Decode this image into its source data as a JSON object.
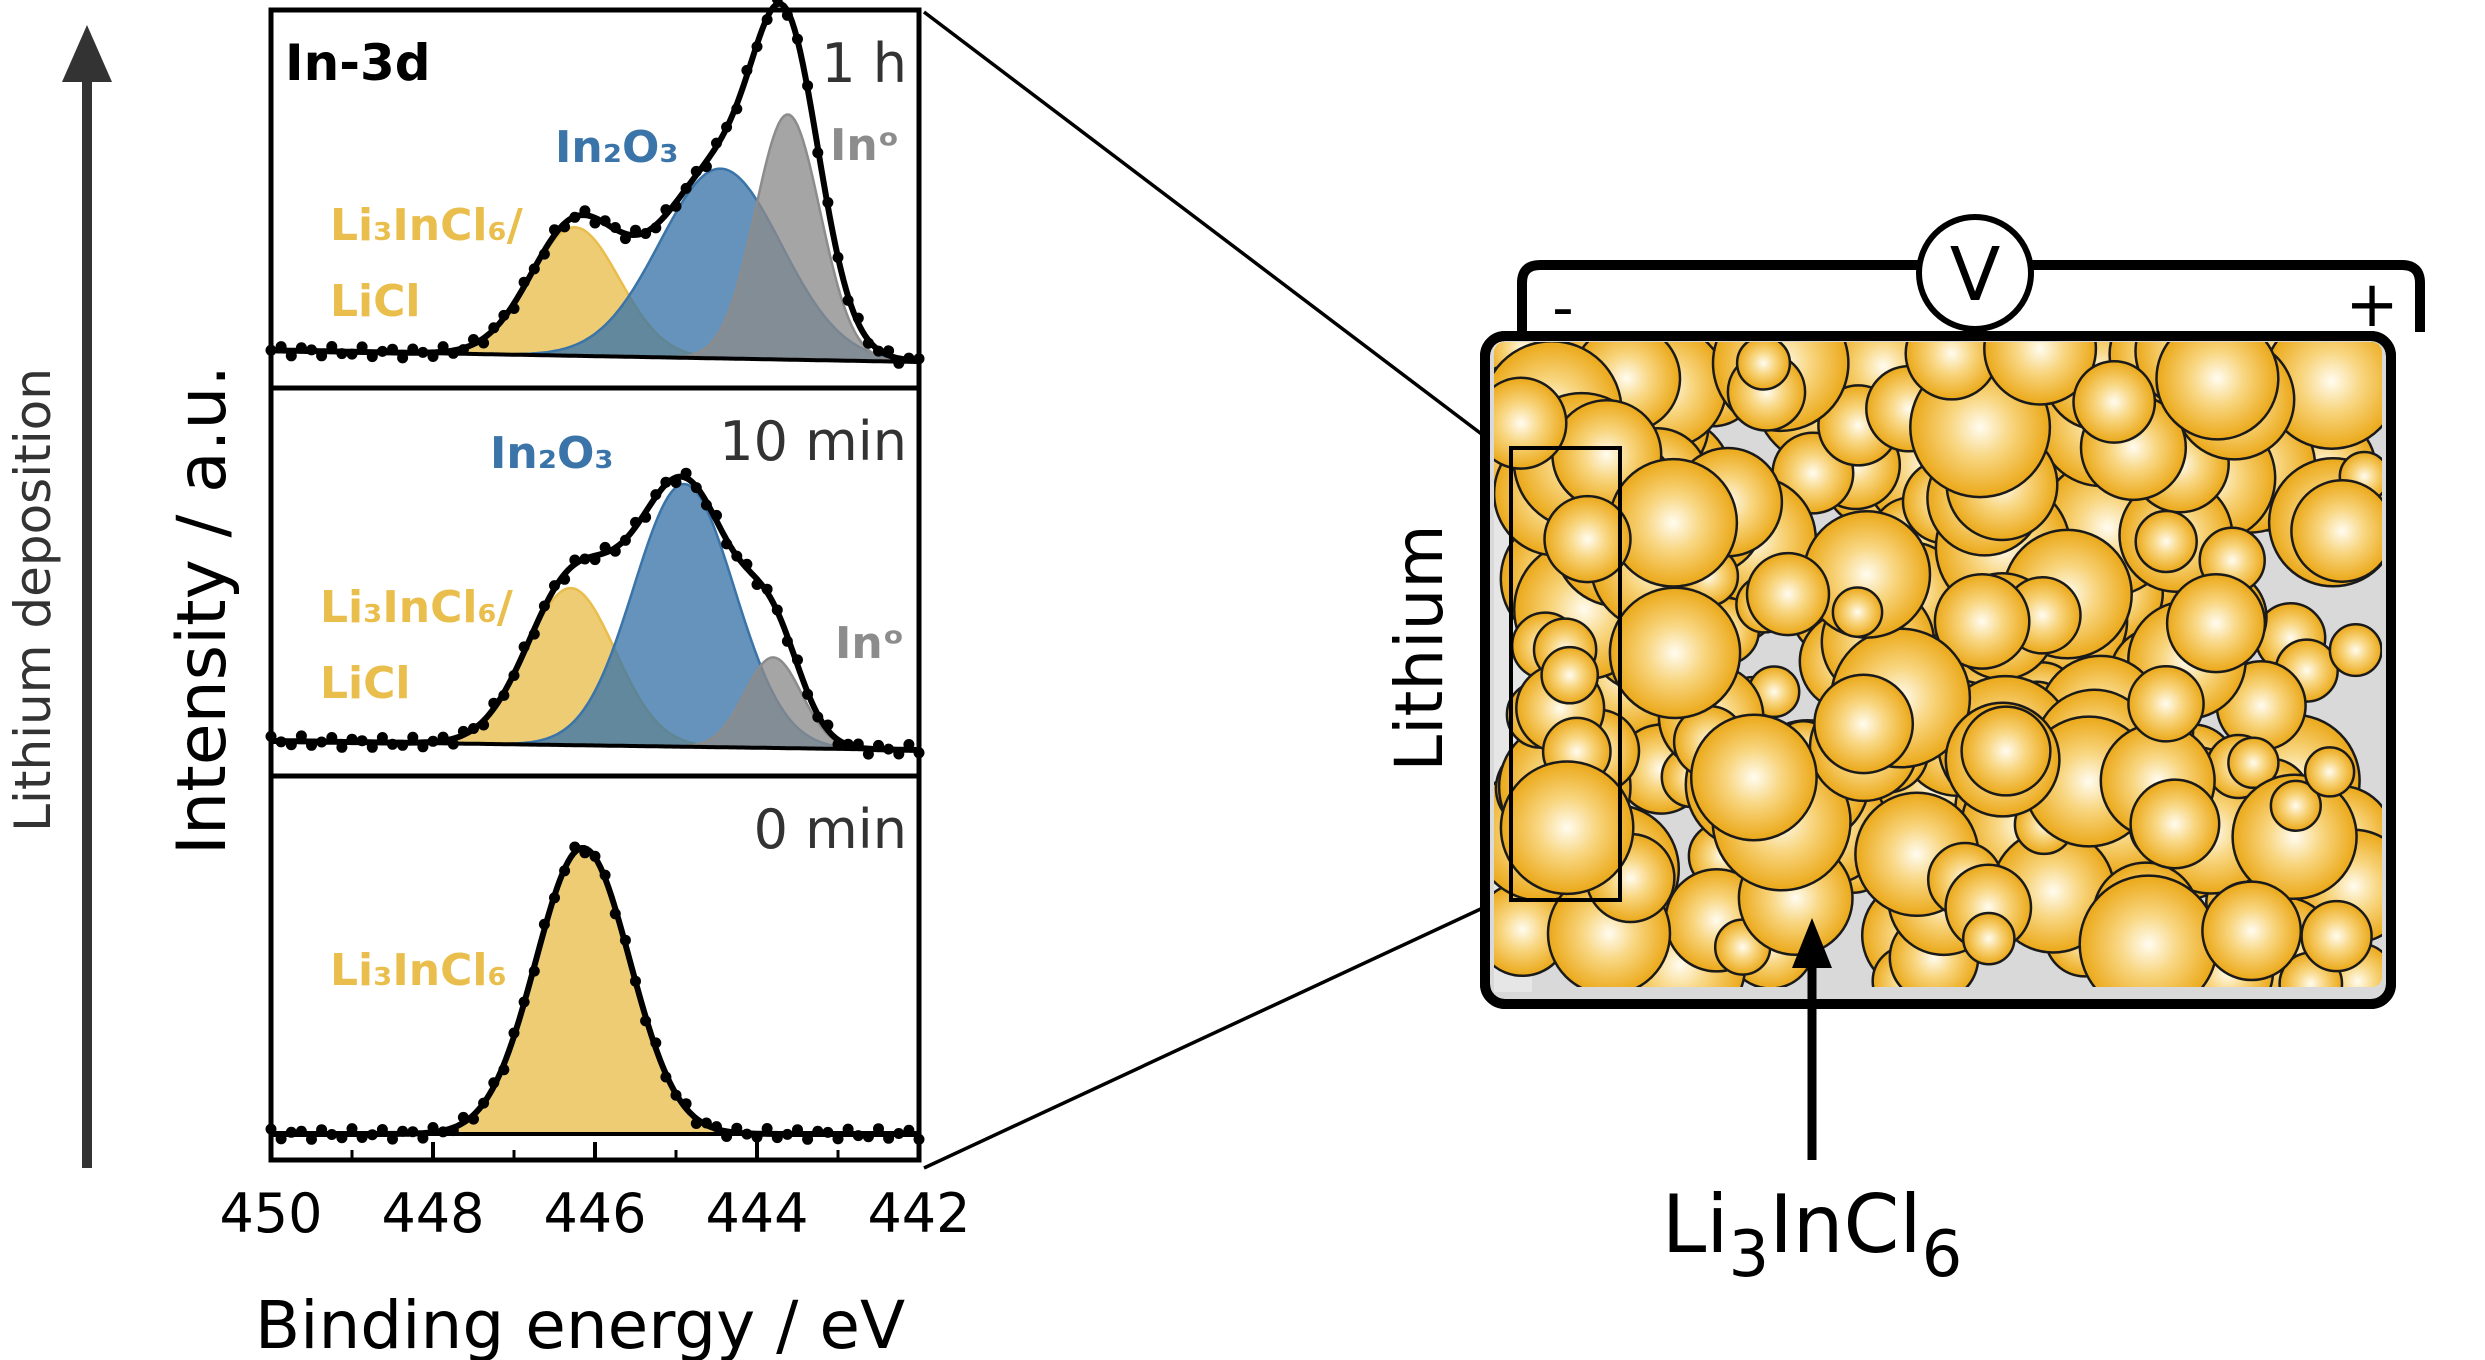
{
  "labels": {
    "left_arrow": "Lithium deposition",
    "y_axis": "Intensity / a.u.",
    "x_axis": "Binding energy / eV",
    "element": "In-3d",
    "electrode": "Lithium",
    "voltmeter": "V",
    "minus": "-",
    "plus": "+",
    "electrolyte_main": "Li",
    "electrolyte_sub1": "3",
    "electrolyte_mid": "InCl",
    "electrolyte_sub2": "6"
  },
  "colors": {
    "li3incl6": "#E9BE4C",
    "in2o3": "#3A74A8",
    "in0": "#8C8C8C",
    "envelope": "#000000",
    "cell_case": "#D9D9D9",
    "sphere": "#F2B522"
  },
  "chart_data": [
    {
      "type": "line",
      "panel": "1 h",
      "xlim": [
        450,
        442
      ],
      "x_ticks": [
        "450",
        "448",
        "446",
        "444",
        "442"
      ],
      "components": [
        {
          "name": "Li₃InCl₆/ LiCl",
          "label_line1": "Li₃InCl₆/",
          "label_line2": "LiCl",
          "color": "#E9BE4C",
          "center": 446.25,
          "height": 0.44,
          "sigma": 0.55
        },
        {
          "name": "In₂O₃",
          "label_line1": "In₂O₃",
          "color": "#3A74A8",
          "center": 444.45,
          "height": 0.65,
          "sigma": 0.75
        },
        {
          "name": "In⁰",
          "label_line1": "Inᵒ",
          "color": "#8C8C8C",
          "center": 443.62,
          "height": 0.84,
          "sigma": 0.4
        }
      ],
      "baseline": [
        0.04,
        0.0
      ]
    },
    {
      "type": "line",
      "panel": "10 min",
      "xlim": [
        450,
        442
      ],
      "components": [
        {
          "name": "Li₃InCl₆/ LiCl",
          "label_line1": "Li₃InCl₆/",
          "label_line2": "LiCl",
          "color": "#E9BE4C",
          "center": 446.3,
          "height": 0.52,
          "sigma": 0.55
        },
        {
          "name": "In₂O₃",
          "label_line1": "In₂O₃",
          "color": "#3A74A8",
          "center": 444.9,
          "height": 0.87,
          "sigma": 0.62
        },
        {
          "name": "In⁰",
          "label_line1": "Inᵒ",
          "color": "#8C8C8C",
          "center": 443.8,
          "height": 0.3,
          "sigma": 0.35
        }
      ],
      "baseline": [
        0.03,
        0.0
      ]
    },
    {
      "type": "line",
      "panel": "0 min",
      "xlim": [
        450,
        442
      ],
      "components": [
        {
          "name": "Li₃InCl₆",
          "label_line1": "Li₃InCl₆",
          "color": "#E9BE4C",
          "center": 446.15,
          "height": 0.96,
          "sigma": 0.58
        }
      ],
      "baseline": [
        0.0,
        0.0
      ]
    }
  ]
}
